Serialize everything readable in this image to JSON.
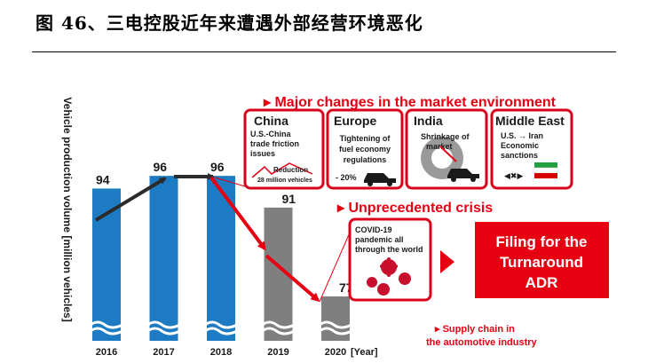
{
  "figure_title": "图 46、三电控股近年来遭遇外部经营环境恶化",
  "chart_data": {
    "type": "bar",
    "categories": [
      "2016",
      "2017",
      "2018",
      "2019",
      "2020"
    ],
    "values": [
      94,
      96,
      96,
      91,
      77
    ],
    "ylabel": "Vehicle production volume [million vehicles]",
    "xlabel_suffix": "[Year]",
    "ylim": [
      0,
      100
    ],
    "colors": [
      "#1c7bc2",
      "#1c7bc2",
      "#1c7bc2",
      "#7f7f7f",
      "#7f7f7f"
    ]
  },
  "market_section": {
    "heading": "▸ Major changes in the market environment",
    "boxes": [
      {
        "title": "China",
        "lines": [
          "U.S.-China",
          "trade friction",
          "issues"
        ],
        "note1": "Reduction",
        "note2": "28 million vehicles"
      },
      {
        "title": "Europe",
        "lines": [
          "Tightening of",
          "fuel economy",
          "regulations"
        ],
        "note1": "- 20%"
      },
      {
        "title": "India",
        "lines": [
          "Shrinkage of",
          "market"
        ]
      },
      {
        "title": "Middle East",
        "lines": [
          "U.S. → Iran",
          "Economic",
          "sanctions"
        ]
      }
    ]
  },
  "crisis_section": {
    "heading": "▸ Unprecedented crisis",
    "covid_lines": [
      "COVID-19",
      "pandemic all",
      "through the world"
    ]
  },
  "adr_box": {
    "lines": [
      "Filing for the",
      "Turnaround",
      "ADR"
    ]
  },
  "supply_note": {
    "lines": [
      "▸ Supply chain in",
      "the automotive industry"
    ]
  },
  "colors": {
    "accent": "#e60012",
    "blue": "#1c7bc2",
    "gray": "#7f7f7f"
  }
}
